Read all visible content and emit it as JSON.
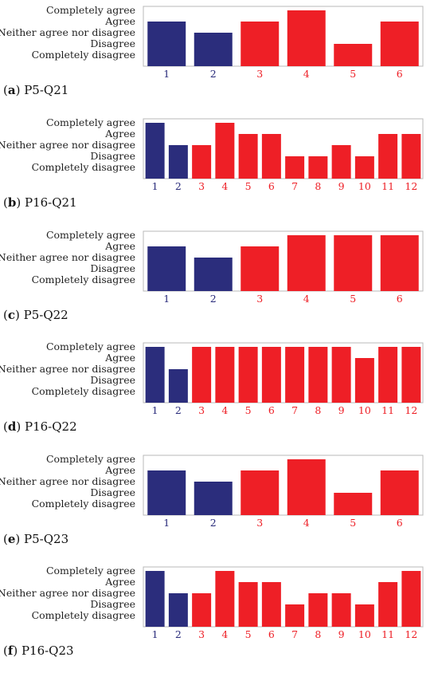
{
  "colors": {
    "group_a": "#2b2d7c",
    "group_b": "#ee1f26",
    "frame": "#b8b8b8"
  },
  "chart_data": [
    {
      "type": "bar",
      "panel_label": "a",
      "title": "P5-Q21",
      "categories": [
        "1",
        "2",
        "3",
        "4",
        "5",
        "6"
      ],
      "values": [
        4,
        3,
        4,
        5,
        2,
        4
      ],
      "groups": [
        "a",
        "a",
        "b",
        "b",
        "b",
        "b"
      ],
      "y_tick_labels": [
        "Completely agree",
        "Agree",
        "Neither agree nor disagree",
        "Disagree",
        "Completely disagree"
      ],
      "ylim": [
        1,
        5
      ],
      "grid": false,
      "legend": "none"
    },
    {
      "type": "bar",
      "panel_label": "b",
      "title": "P16-Q21",
      "categories": [
        "1",
        "2",
        "3",
        "4",
        "5",
        "6",
        "7",
        "8",
        "9",
        "10",
        "11",
        "12"
      ],
      "values": [
        5,
        3,
        3,
        5,
        4,
        4,
        2,
        2,
        3,
        2,
        4,
        4
      ],
      "groups": [
        "a",
        "a",
        "b",
        "b",
        "b",
        "b",
        "b",
        "b",
        "b",
        "b",
        "b",
        "b"
      ],
      "y_tick_labels": [
        "Completely agree",
        "Agree",
        "Neither agree nor disagree",
        "Disagree",
        "Completely disagree"
      ],
      "ylim": [
        1,
        5
      ],
      "grid": false,
      "legend": "none"
    },
    {
      "type": "bar",
      "panel_label": "c",
      "title": "P5-Q22",
      "categories": [
        "1",
        "2",
        "3",
        "4",
        "5",
        "6"
      ],
      "values": [
        4,
        3,
        4,
        5,
        5,
        5
      ],
      "groups": [
        "a",
        "a",
        "b",
        "b",
        "b",
        "b"
      ],
      "y_tick_labels": [
        "Completely agree",
        "Agree",
        "Neither agree nor disagree",
        "Disagree",
        "Completely disagree"
      ],
      "ylim": [
        1,
        5
      ],
      "grid": false,
      "legend": "none"
    },
    {
      "type": "bar",
      "panel_label": "d",
      "title": "P16-Q22",
      "categories": [
        "1",
        "2",
        "3",
        "4",
        "5",
        "6",
        "7",
        "8",
        "9",
        "10",
        "11",
        "12"
      ],
      "values": [
        5,
        3,
        5,
        5,
        5,
        5,
        5,
        5,
        5,
        4,
        5,
        5
      ],
      "groups": [
        "a",
        "a",
        "b",
        "b",
        "b",
        "b",
        "b",
        "b",
        "b",
        "b",
        "b",
        "b"
      ],
      "y_tick_labels": [
        "Completely agree",
        "Agree",
        "Neither agree nor disagree",
        "Disagree",
        "Completely disagree"
      ],
      "ylim": [
        1,
        5
      ],
      "grid": false,
      "legend": "none"
    },
    {
      "type": "bar",
      "panel_label": "e",
      "title": "P5-Q23",
      "categories": [
        "1",
        "2",
        "3",
        "4",
        "5",
        "6"
      ],
      "values": [
        4,
        3,
        4,
        5,
        2,
        4
      ],
      "groups": [
        "a",
        "a",
        "b",
        "b",
        "b",
        "b"
      ],
      "y_tick_labels": [
        "Completely agree",
        "Agree",
        "Neither agree nor disagree",
        "Disagree",
        "Completely disagree"
      ],
      "ylim": [
        1,
        5
      ],
      "grid": false,
      "legend": "none"
    },
    {
      "type": "bar",
      "panel_label": "f",
      "title": "P16-Q23",
      "categories": [
        "1",
        "2",
        "3",
        "4",
        "5",
        "6",
        "7",
        "8",
        "9",
        "10",
        "11",
        "12"
      ],
      "values": [
        5,
        3,
        3,
        5,
        4,
        4,
        2,
        3,
        3,
        2,
        4,
        5
      ],
      "groups": [
        "a",
        "a",
        "b",
        "b",
        "b",
        "b",
        "b",
        "b",
        "b",
        "b",
        "b",
        "b"
      ],
      "y_tick_labels": [
        "Completely agree",
        "Agree",
        "Neither agree nor disagree",
        "Disagree",
        "Completely disagree"
      ],
      "ylim": [
        1,
        5
      ],
      "grid": false,
      "legend": "none"
    }
  ]
}
